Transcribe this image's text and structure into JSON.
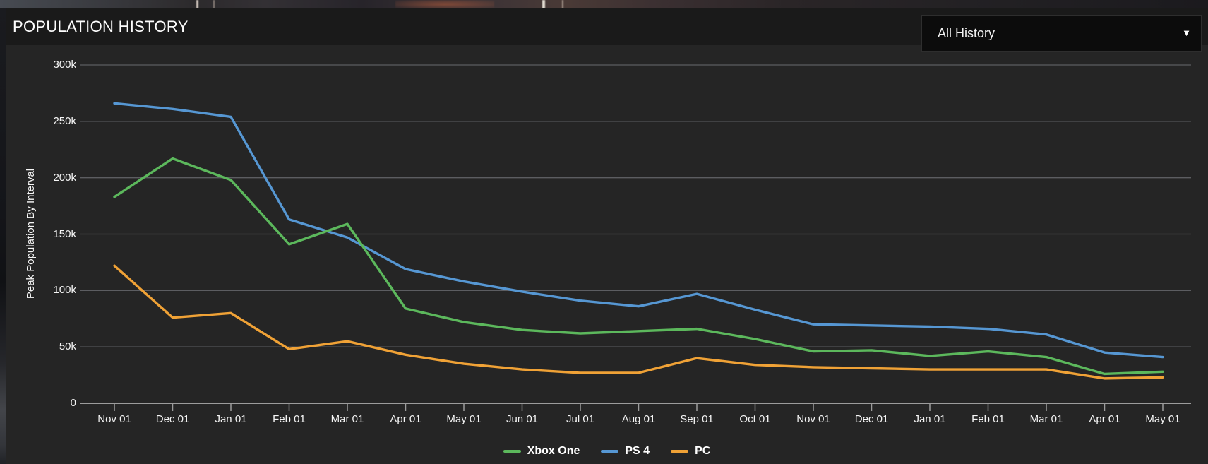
{
  "header": {
    "title": "POPULATION HISTORY"
  },
  "controls": {
    "history_dropdown": {
      "value": "All History",
      "arrow_glyph": "▼"
    }
  },
  "chart_data": {
    "type": "line",
    "title": "POPULATION HISTORY",
    "xlabel": "",
    "ylabel": "Peak Population By Interval",
    "unit_note": "values in thousands of players (k)",
    "categories": [
      "Nov 01",
      "Dec 01",
      "Jan 01",
      "Feb 01",
      "Mar 01",
      "Apr 01",
      "May 01",
      "Jun 01",
      "Jul 01",
      "Aug 01",
      "Sep 01",
      "Oct 01",
      "Nov 01",
      "Dec 01",
      "Jan 01",
      "Feb 01",
      "Mar 01",
      "Apr 01",
      "May 01"
    ],
    "series": [
      {
        "name": "Xbox One",
        "color": "#5cb85c",
        "values": [
          183,
          217,
          198,
          141,
          159,
          84,
          72,
          65,
          62,
          64,
          66,
          57,
          46,
          47,
          42,
          46,
          41,
          26,
          28
        ]
      },
      {
        "name": "PS 4",
        "color": "#5697d3",
        "values": [
          266,
          261,
          254,
          163,
          147,
          119,
          108,
          99,
          91,
          86,
          97,
          83,
          70,
          69,
          68,
          66,
          61,
          45,
          41
        ]
      },
      {
        "name": "PC",
        "color": "#f0a236",
        "values": [
          122,
          76,
          80,
          48,
          55,
          43,
          35,
          30,
          27,
          27,
          40,
          34,
          32,
          31,
          30,
          30,
          30,
          22,
          23
        ]
      }
    ],
    "ylim": [
      0,
      300
    ],
    "y_ticks": [
      {
        "value": 0,
        "label": "0"
      },
      {
        "value": 50,
        "label": "50k"
      },
      {
        "value": 100,
        "label": "100k"
      },
      {
        "value": 150,
        "label": "150k"
      },
      {
        "value": 200,
        "label": "200k"
      },
      {
        "value": 250,
        "label": "250k"
      },
      {
        "value": 300,
        "label": "300k"
      }
    ],
    "grid": true,
    "legend_position": "bottom"
  }
}
